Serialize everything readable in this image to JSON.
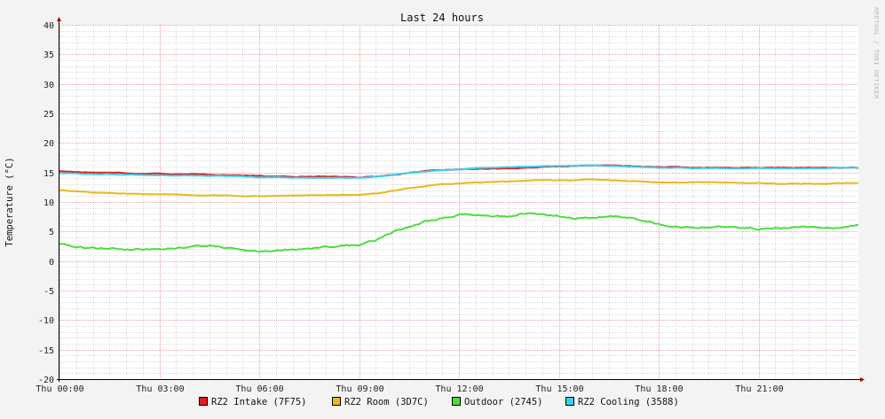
{
  "chart_data": {
    "type": "line",
    "title": "Last 24 hours",
    "ylabel": "Temperature (°C)",
    "xlabel": "",
    "watermark": "RRDTOOL / TOBI OETIKER",
    "ylim": [
      -20,
      40
    ],
    "yticks": [
      -20,
      -15,
      -10,
      -5,
      0,
      5,
      10,
      15,
      20,
      25,
      30,
      35,
      40
    ],
    "xlim": [
      0,
      24
    ],
    "xticks": [
      {
        "hour": 0,
        "label": "Thu 00:00"
      },
      {
        "hour": 3,
        "label": "Thu 03:00"
      },
      {
        "hour": 6,
        "label": "Thu 06:00"
      },
      {
        "hour": 9,
        "label": "Thu 09:00"
      },
      {
        "hour": 12,
        "label": "Thu 12:00"
      },
      {
        "hour": 15,
        "label": "Thu 15:00"
      },
      {
        "hour": 18,
        "label": "Thu 18:00"
      },
      {
        "hour": 21,
        "label": "Thu 21:00"
      }
    ],
    "grid": true,
    "legend_position": "bottom",
    "x_hours": [
      0,
      0.5,
      1,
      1.5,
      2,
      2.5,
      3,
      3.5,
      4,
      4.5,
      5,
      5.5,
      6,
      6.5,
      7,
      7.5,
      8,
      8.5,
      9,
      9.5,
      10,
      10.5,
      11,
      11.5,
      12,
      12.5,
      13,
      13.5,
      14,
      14.5,
      15,
      15.5,
      16,
      16.5,
      17,
      17.5,
      18,
      18.5,
      19,
      19.5,
      20,
      20.5,
      21,
      21.5,
      22,
      22.5,
      23,
      23.5,
      24
    ],
    "series": [
      {
        "name": "RZ2 Intake (7F75)",
        "color": "#e41a1c",
        "values": [
          15.2,
          15.1,
          15.0,
          15.0,
          14.9,
          14.8,
          14.8,
          14.7,
          14.7,
          14.6,
          14.6,
          14.5,
          14.4,
          14.3,
          14.3,
          14.3,
          14.3,
          14.3,
          14.2,
          14.3,
          14.6,
          14.9,
          15.2,
          15.4,
          15.5,
          15.6,
          15.6,
          15.7,
          15.8,
          15.9,
          16.0,
          16.1,
          16.2,
          16.2,
          16.1,
          16.0,
          15.9,
          15.9,
          15.8,
          15.8,
          15.8,
          15.8,
          15.8,
          15.8,
          15.8,
          15.8,
          15.8,
          15.8,
          15.8
        ]
      },
      {
        "name": "RZ2 Room (3D7C)",
        "color": "#e6b820",
        "values": [
          12.0,
          11.8,
          11.6,
          11.5,
          11.4,
          11.4,
          11.3,
          11.3,
          11.2,
          11.1,
          11.1,
          11.0,
          11.0,
          11.1,
          11.1,
          11.1,
          11.2,
          11.2,
          11.2,
          11.4,
          11.9,
          12.3,
          12.7,
          13.0,
          13.1,
          13.3,
          13.4,
          13.5,
          13.6,
          13.7,
          13.7,
          13.7,
          13.8,
          13.7,
          13.6,
          13.5,
          13.3,
          13.3,
          13.3,
          13.3,
          13.3,
          13.2,
          13.2,
          13.1,
          13.1,
          13.1,
          13.1,
          13.2,
          13.2
        ]
      },
      {
        "name": "Outdoor (2745)",
        "color": "#4ddd3f",
        "values": [
          3.0,
          2.4,
          2.2,
          2.2,
          2.0,
          2.0,
          2.1,
          2.2,
          2.5,
          2.6,
          2.2,
          2.0,
          1.6,
          1.8,
          2.0,
          2.2,
          2.4,
          2.5,
          2.7,
          3.5,
          5.0,
          5.8,
          6.8,
          7.3,
          7.8,
          7.7,
          7.6,
          7.5,
          8.0,
          7.8,
          7.6,
          7.3,
          7.4,
          7.7,
          7.3,
          7.0,
          6.3,
          5.8,
          5.6,
          5.8,
          5.8,
          5.6,
          5.5,
          5.6,
          5.7,
          5.8,
          5.6,
          5.6,
          6.0
        ]
      },
      {
        "name": "RZ2 Cooling (3588)",
        "color": "#3ad0ef",
        "values": [
          14.9,
          14.8,
          14.7,
          14.7,
          14.6,
          14.6,
          14.5,
          14.5,
          14.5,
          14.4,
          14.4,
          14.3,
          14.2,
          14.2,
          14.1,
          14.1,
          14.1,
          14.1,
          14.1,
          14.3,
          14.6,
          14.9,
          15.2,
          15.4,
          15.5,
          15.7,
          15.8,
          15.9,
          16.0,
          16.1,
          16.1,
          16.1,
          16.2,
          16.1,
          16.0,
          15.9,
          15.8,
          15.8,
          15.7,
          15.7,
          15.7,
          15.7,
          15.7,
          15.7,
          15.7,
          15.7,
          15.7,
          15.8,
          15.8
        ]
      }
    ]
  }
}
